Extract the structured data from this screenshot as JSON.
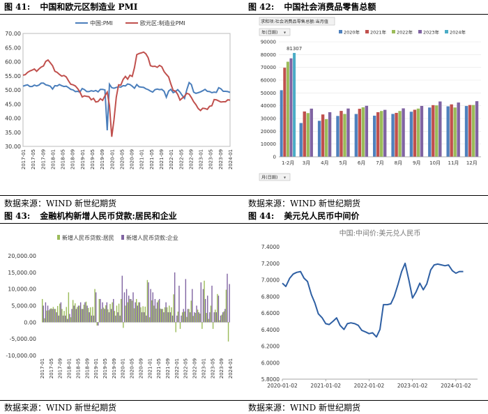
{
  "panels": [
    {
      "num": "图 41:",
      "title": "中国和欧元区制造业 PMI",
      "source": "数据来源：WIND 新世纪期货",
      "chart": {
        "type": "line",
        "series": [
          {
            "name": "中国:PMI",
            "color": "#4a7ebb"
          },
          {
            "name": "欧元区:制造业PMI",
            "color": "#c0504d"
          }
        ],
        "ylim": [
          30,
          70
        ],
        "yticks": [
          "70.00",
          "65.00",
          "60.00",
          "55.00",
          "50.00",
          "45.00",
          "40.00",
          "35.00",
          "30.00"
        ],
        "xticks": [
          "2017-01",
          "2017-05",
          "2017-09",
          "2018-01",
          "2018-05",
          "2018-09",
          "2019-01",
          "2019-05",
          "2019-09",
          "2020-01",
          "2020-05",
          "2020-09",
          "2021-01",
          "2021-05",
          "2021-09",
          "2022-01",
          "2022-05",
          "2022-09",
          "2023-01",
          "2023-05",
          "2023-09",
          "2024-01"
        ],
        "china_pmi": [
          51.3,
          51.6,
          51.8,
          51.2,
          51.2,
          51.7,
          51.4,
          51.7,
          52.4,
          52.4,
          51.8,
          51.6,
          51.3,
          50.3,
          51.5,
          51.4,
          51.9,
          51.5,
          51.2,
          51.3,
          50.8,
          50.2,
          50.0,
          49.4,
          49.5,
          49.2,
          50.5,
          50.1,
          49.4,
          49.4,
          49.7,
          49.5,
          49.8,
          49.3,
          50.2,
          50.2,
          50.0,
          35.7,
          52.0,
          50.8,
          50.6,
          50.9,
          51.1,
          51.0,
          51.5,
          51.4,
          52.1,
          51.9,
          51.3,
          50.6,
          51.9,
          51.1,
          51.0,
          50.9,
          50.4,
          50.1,
          49.6,
          49.2,
          50.1,
          50.3,
          50.1,
          50.2,
          49.5,
          47.4,
          49.6,
          50.2,
          49.0,
          49.4,
          50.1,
          49.2,
          48.0,
          47.0,
          50.1,
          52.6,
          51.9,
          49.2,
          48.8,
          49.0,
          49.3,
          49.7,
          50.2,
          49.5,
          49.4,
          49.0,
          49.2,
          49.1,
          50.8,
          50.4,
          49.5,
          49.5,
          49.4,
          49.1
        ],
        "euro_pmi": [
          55.2,
          55.4,
          56.2,
          56.7,
          57.0,
          57.4,
          56.6,
          57.4,
          58.1,
          58.5,
          60.1,
          60.6,
          59.6,
          58.6,
          56.6,
          56.2,
          55.5,
          54.9,
          55.1,
          54.6,
          53.2,
          52.0,
          51.8,
          51.4,
          50.5,
          49.3,
          47.5,
          47.9,
          47.7,
          47.6,
          46.5,
          47.0,
          45.7,
          45.9,
          46.9,
          46.3,
          47.9,
          49.2,
          44.5,
          33.4,
          39.4,
          47.4,
          51.8,
          51.7,
          53.7,
          54.8,
          53.8,
          55.2,
          54.8,
          57.9,
          62.5,
          62.9,
          63.1,
          63.4,
          62.8,
          61.4,
          58.6,
          58.3,
          58.4,
          58.0,
          58.7,
          58.2,
          56.5,
          55.5,
          54.6,
          52.1,
          49.8,
          49.6,
          48.4,
          46.4,
          47.1,
          47.8,
          48.8,
          48.5,
          47.3,
          45.8,
          44.8,
          43.4,
          42.7,
          43.5,
          43.4,
          43.1,
          44.2,
          44.4,
          46.6,
          46.5,
          46.1,
          45.7,
          45.8,
          45.8,
          46.5,
          46.4
        ]
      }
    },
    {
      "num": "图 42:",
      "title": "中国社会消费品零售总额",
      "source": "数据来源：WIND 新世纪期货",
      "chart": {
        "type": "bar",
        "filter_label": "求和项:社会消费品零售总额:当月值",
        "field_button": "年(日期)",
        "row_button": "月(日期)",
        "series": [
          {
            "name": "2020年",
            "color": "#4f81bd",
            "values": [
              52130,
              26450,
              28178,
              31973,
              33526,
              32203,
              33571,
              35295,
              38576,
              39514,
              39774
            ]
          },
          {
            "name": "2021年",
            "color": "#c0504d",
            "values": [
              69737,
              35484,
              33153,
              35945,
              37586,
              34925,
              34395,
              36833,
              40454,
              41043,
              40566
            ]
          },
          {
            "name": "2022年",
            "color": "#9bbb59",
            "values": [
              74426,
              34233,
              29483,
              33547,
              38742,
              35870,
              35870,
              37745,
              40271,
              38615,
              40542
            ]
          },
          {
            "name": "2023年",
            "color": "#8064a2",
            "values": [
              77067,
              37715,
              34910,
              37803,
              39951,
              36761,
              37933,
              39826,
              43333,
              42505,
              43550
            ]
          },
          {
            "name": "2024年",
            "color": "#4bacc6",
            "values": [
              81307,
              null,
              null,
              null,
              null,
              null,
              null,
              null,
              null,
              null,
              null
            ]
          }
        ],
        "categories": [
          "1-2月",
          "3月",
          "4月",
          "5月",
          "6月",
          "7月",
          "8月",
          "9月",
          "10月",
          "11月",
          "12月"
        ],
        "yticks": [
          "90000",
          "80000",
          "70000",
          "60000",
          "50000",
          "40000",
          "30000",
          "20000",
          "10000",
          "0"
        ],
        "ylim": [
          0,
          90000
        ],
        "data_label": "81307"
      }
    },
    {
      "num": "图 43:",
      "title": "金融机构新增人民币贷款:居民和企业",
      "source": "数据来源：WIND 新世纪期货",
      "chart": {
        "type": "bar",
        "series": [
          {
            "name": "新增人民币贷款:居民",
            "color": "#9bbb59"
          },
          {
            "name": "新增人民币贷款:企业",
            "color": "#8064a2"
          }
        ],
        "ylim": [
          -10000,
          20000
        ],
        "yticks": [
          "20,000.00",
          "15,000.00",
          "10,000.00",
          "5,000.00",
          "0.00",
          "-5,000.00",
          "-10,000.00"
        ],
        "xticks": [
          "2017-01",
          "2017-05",
          "2017-09",
          "2018-01",
          "2018-05",
          "2018-09",
          "2019-01",
          "2019-05",
          "2019-09",
          "2020-01",
          "2020-05",
          "2020-09",
          "2021-01",
          "2021-05",
          "2021-09",
          "2022-01",
          "2022-05",
          "2022-09",
          "2023-01",
          "2023-05",
          "2023-09",
          "2024-01"
        ],
        "household": [
          7000,
          1200,
          3500,
          3600,
          4200,
          4600,
          4000,
          4900,
          5600,
          4000,
          3400,
          4600,
          9000,
          1500,
          6700,
          5700,
          4600,
          5000,
          4000,
          5300,
          6200,
          4300,
          4500,
          4600,
          10000,
          -1000,
          7000,
          4000,
          4400,
          5100,
          3900,
          5500,
          6000,
          3400,
          5000,
          5600,
          7000,
          -1700,
          5000,
          6000,
          7000,
          6500,
          4200,
          7000,
          6000,
          4500,
          4800,
          4700,
          12700,
          1500,
          6600,
          5000,
          4100,
          6600,
          4100,
          4000,
          4500,
          4500,
          5000,
          4500,
          8400,
          -3000,
          3200,
          -2000,
          3000,
          3200,
          1600,
          4000,
          6500,
          1900,
          2800,
          3800,
          2600,
          -2000,
          12500,
          2800,
          1000,
          5000,
          -2000,
          3800,
          8500,
          600,
          2300,
          3300,
          9800,
          -5800
        ],
        "enterprise": [
          5000,
          6000,
          5000,
          4000,
          4000,
          4000,
          3000,
          2000,
          6000,
          2000,
          2000,
          1000,
          2500,
          4000,
          5000,
          4000,
          5000,
          6000,
          4000,
          6000,
          5000,
          3000,
          2000,
          2000,
          9000,
          -1000,
          7000,
          6000,
          4000,
          6000,
          3000,
          4000,
          7000,
          2000,
          3000,
          2000,
          14000,
          9000,
          10000,
          8000,
          7000,
          9000,
          6000,
          5000,
          6000,
          3000,
          3000,
          2000,
          12000,
          10000,
          9000,
          7000,
          6000,
          7000,
          4000,
          3000,
          6000,
          3000,
          3000,
          2000,
          15000,
          2000,
          11000,
          2000,
          4000,
          13000,
          4000,
          3000,
          10000,
          3000,
          5000,
          3000,
          12000,
          10000,
          7000,
          8000,
          3000,
          11000,
          3000,
          3000,
          8000,
          2000,
          3000,
          4000,
          14600,
          11500
        ]
      }
    },
    {
      "num": "图 44:",
      "title": "美元兑人民币中间价",
      "source": "数据来源：WIND 新世纪期货",
      "chart": {
        "type": "line",
        "title": "中国:中间价:美元兑人民币",
        "color": "#2e5fa3",
        "ylim": [
          5.8,
          7.4
        ],
        "yticks": [
          "7.4000",
          "7.2000",
          "7.0000",
          "6.8000",
          "6.6000",
          "6.4000",
          "6.2000",
          "6.0000",
          "5.8000"
        ],
        "xticks": [
          "2020-01-02",
          "2021-01-02",
          "2022-01-02",
          "2023-01-02",
          "2024-01-02"
        ],
        "x": [
          2020.0,
          2020.08,
          2020.17,
          2020.25,
          2020.33,
          2020.42,
          2020.5,
          2020.58,
          2020.67,
          2020.75,
          2020.83,
          2020.92,
          2021.0,
          2021.08,
          2021.17,
          2021.25,
          2021.33,
          2021.42,
          2021.5,
          2021.58,
          2021.67,
          2021.75,
          2021.83,
          2021.92,
          2022.0,
          2022.08,
          2022.17,
          2022.25,
          2022.33,
          2022.42,
          2022.5,
          2022.58,
          2022.67,
          2022.75,
          2022.83,
          2022.92,
          2023.0,
          2023.08,
          2023.17,
          2023.25,
          2023.33,
          2023.42,
          2023.5,
          2023.58,
          2023.67,
          2023.75,
          2023.83,
          2023.92,
          2024.0,
          2024.08,
          2024.17
        ],
        "y": [
          6.96,
          6.92,
          7.02,
          7.07,
          7.09,
          7.1,
          7.02,
          6.98,
          6.82,
          6.72,
          6.59,
          6.54,
          6.47,
          6.46,
          6.5,
          6.54,
          6.45,
          6.4,
          6.47,
          6.48,
          6.47,
          6.45,
          6.39,
          6.37,
          6.35,
          6.36,
          6.31,
          6.4,
          6.7,
          6.7,
          6.71,
          6.8,
          6.95,
          7.1,
          7.2,
          6.99,
          6.78,
          6.85,
          6.96,
          6.88,
          6.95,
          7.12,
          7.18,
          7.19,
          7.18,
          7.17,
          7.18,
          7.11,
          7.08,
          7.1,
          7.1
        ]
      }
    }
  ]
}
